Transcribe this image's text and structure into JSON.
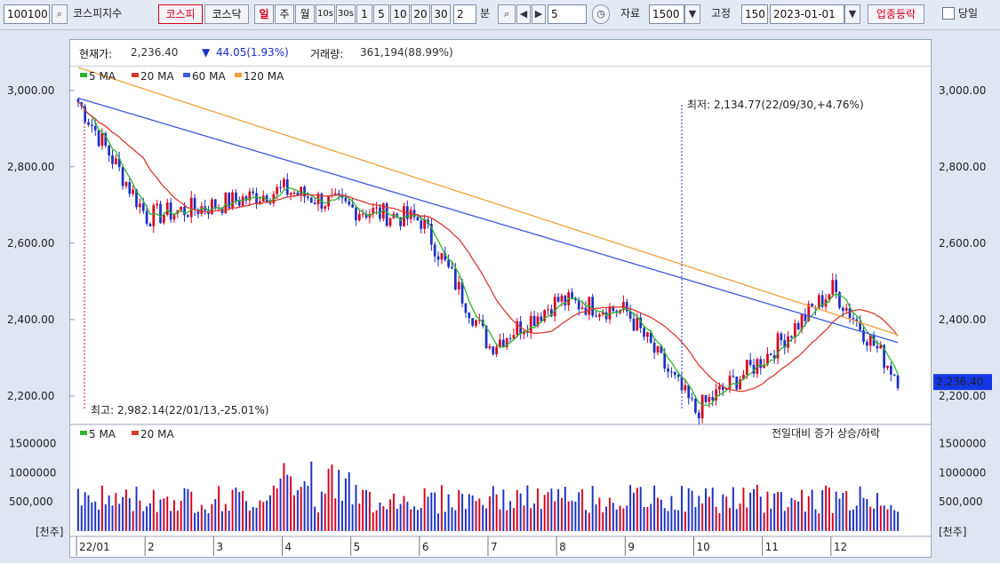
{
  "toolbar": {
    "code": "100100",
    "search_icon": "search-icon",
    "name": "코스피지수",
    "market_kospi": "코스피",
    "market_kosdaq": "코스닥",
    "period_day": "일",
    "period_week": "주",
    "period_month": "월",
    "period_10s": "10s",
    "period_30s": "30s",
    "min_1": "1",
    "min_5": "5",
    "min_10": "10",
    "min_20": "20",
    "min_30": "30",
    "minute_value": "2",
    "minute_label": "분",
    "nav_value": "5",
    "data_label": "자료",
    "data_count": "1500",
    "fixed_label": "고정",
    "fixed_count": "150",
    "date": "2023-01-01",
    "sector_button": "업종등락",
    "today_label": "당일"
  },
  "info": {
    "price_label": "현재가:",
    "price_value": "2,236.40",
    "change_arrow": "▼",
    "change_value": "44.05(1.93%)",
    "volume_label": "거래량:",
    "volume_value": "361,194(88.99%)"
  },
  "legend_price": [
    {
      "label": "5 MA",
      "color": "#2db52d"
    },
    {
      "label": "20 MA",
      "color": "#d83a2e"
    },
    {
      "label": "60 MA",
      "color": "#3a5ad8"
    },
    {
      "label": "120 MA",
      "color": "#f2a03c"
    }
  ],
  "legend_volume": [
    {
      "label": "5 MA",
      "color": "#2db52d"
    },
    {
      "label": "20 MA",
      "color": "#d83a2e"
    }
  ],
  "colors": {
    "up": "#d8001c",
    "down": "#1a2fc8",
    "current_tag_bg": "#1336e8"
  },
  "chart_data": {
    "type": "candlestick",
    "x_month_labels": [
      "22/01",
      "2",
      "3",
      "4",
      "5",
      "6",
      "7",
      "8",
      "9",
      "10",
      "11",
      "12"
    ],
    "price_ticks": [
      "3,000.00",
      "2,800.00",
      "2,600.00",
      "2,400.00",
      "2,200.00"
    ],
    "price_ylim": [
      2130,
      3060
    ],
    "volume_ticks": [
      "1500000",
      "1000000",
      "500,000"
    ],
    "volume_unit": "[천주]",
    "volume_ylim": [
      0,
      1800000
    ],
    "current_price": "2,236.40",
    "high_annotation": "최고: 2,982.14(22/01/13,-25.01%)",
    "low_annotation": "최저: 2,134.77(22/09/30,+4.76%)",
    "volume_note": "전일대비 증가 상승/하락",
    "monthly_anchors": [
      {
        "m": "22/01",
        "open": 2970,
        "close": 2670
      },
      {
        "m": "2",
        "open": 2670,
        "close": 2700
      },
      {
        "m": "3",
        "open": 2700,
        "close": 2740
      },
      {
        "m": "4",
        "open": 2740,
        "close": 2690
      },
      {
        "m": "5",
        "open": 2690,
        "close": 2660
      },
      {
        "m": "6",
        "open": 2660,
        "close": 2330
      },
      {
        "m": "7",
        "open": 2330,
        "close": 2450
      },
      {
        "m": "8",
        "open": 2450,
        "close": 2420
      },
      {
        "m": "9",
        "open": 2420,
        "close": 2160
      },
      {
        "m": "10",
        "open": 2160,
        "close": 2300
      },
      {
        "m": "11",
        "open": 2300,
        "close": 2480
      },
      {
        "m": "12",
        "open": 2480,
        "close": 2236
      }
    ],
    "ma_levels": {
      "ma60_start": 2980,
      "ma60_end": 2340,
      "ma120_start": 3060,
      "ma120_end": 2360
    }
  }
}
